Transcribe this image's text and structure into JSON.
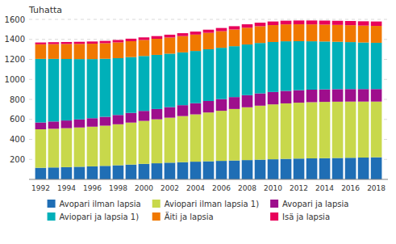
{
  "chart_data": {
    "type": "bar",
    "stacked": true,
    "grid": true,
    "legend": "bottom",
    "y_label": "Tuhatta",
    "x": [
      1992,
      1993,
      1994,
      1995,
      1996,
      1997,
      1998,
      1999,
      2000,
      2001,
      2002,
      2003,
      2004,
      2005,
      2006,
      2007,
      2008,
      2009,
      2010,
      2011,
      2012,
      2013,
      2014,
      2015,
      2016,
      2017,
      2018
    ],
    "xlim": [
      1991.1,
      2018.9
    ],
    "xticks": [
      1992,
      1994,
      1996,
      1998,
      2000,
      2002,
      2004,
      2006,
      2008,
      2010,
      2012,
      2014,
      2016,
      2018
    ],
    "ylim": [
      0,
      1600
    ],
    "yticks": [
      200,
      400,
      600,
      800,
      1000,
      1200,
      1400,
      1600
    ],
    "series": [
      {
        "name": "Avopari ilman lapsia",
        "color": "#1f6eb5",
        "values": [
          116,
          119,
          122,
          126,
          130,
          135,
          141,
          148,
          155,
          161,
          167,
          172,
          177,
          181,
          185,
          189,
          193,
          197,
          201,
          205,
          208,
          210,
          212,
          214,
          216,
          218,
          221
        ]
      },
      {
        "name": "Aviopari ilman lapsia 1)",
        "color": "#c8d84b",
        "values": [
          385,
          387,
          390,
          393,
          397,
          402,
          410,
          420,
          430,
          440,
          450,
          461,
          473,
          488,
          501,
          515,
          528,
          540,
          549,
          555,
          559,
          562,
          563,
          563,
          562,
          560,
          557
        ]
      },
      {
        "name": "Avopari ja lapsia",
        "color": "#9e0e8c",
        "values": [
          68,
          73,
          77,
          81,
          85,
          89,
          93,
          97,
          100,
          103,
          106,
          109,
          112,
          115,
          117,
          119,
          121,
          123,
          124,
          125,
          125,
          125,
          125,
          125,
          125,
          125,
          125
        ]
      },
      {
        "name": "Aviopari ja lapsia 1)",
        "color": "#00b0b9",
        "values": [
          636,
          626,
          615,
          603,
          591,
          580,
          568,
          558,
          549,
          541,
          534,
          528,
          522,
          517,
          513,
          509,
          507,
          504,
          500,
          496,
          490,
          484,
          479,
          474,
          470,
          466,
          463
        ]
      },
      {
        "name": "Äiti ja lapsia",
        "color": "#f07800",
        "values": [
          146,
          148,
          150,
          152,
          154,
          156,
          158,
          159,
          160,
          161,
          162,
          163,
          164,
          165,
          166,
          167,
          168,
          168,
          169,
          169,
          169,
          169,
          169,
          169,
          169,
          169,
          169
        ]
      },
      {
        "name": "Isä ja lapsia",
        "color": "#e8005a",
        "values": [
          18,
          19,
          20,
          21,
          22,
          23,
          24,
          25,
          26,
          27,
          28,
          29,
          30,
          31,
          32,
          33,
          34,
          35,
          36,
          37,
          38,
          39,
          40,
          41,
          42,
          43,
          44
        ]
      }
    ]
  }
}
